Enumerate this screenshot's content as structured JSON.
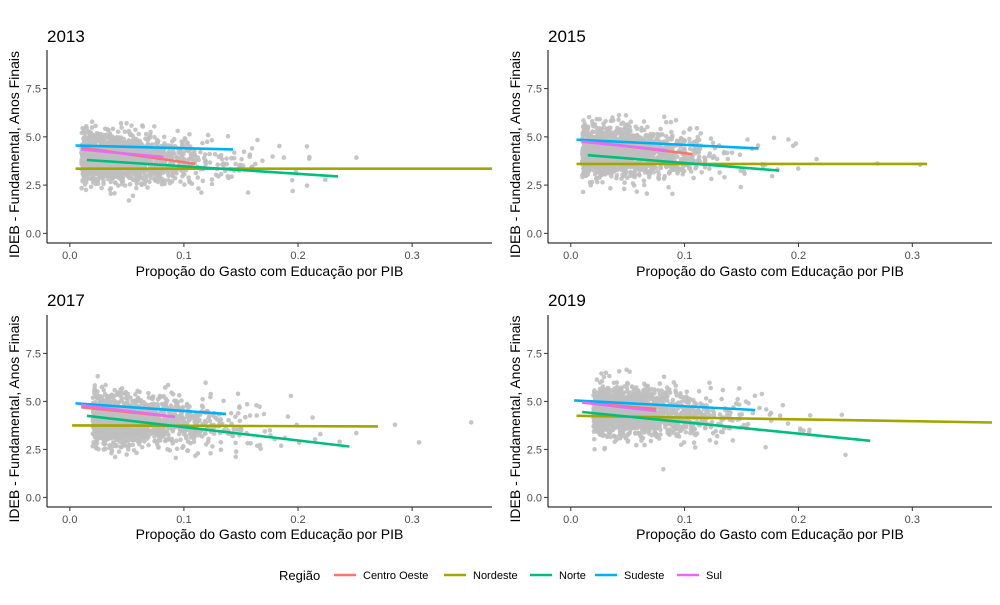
{
  "chart_data": [
    {
      "type": "scatter",
      "title": "2013",
      "xlabel": "Propoção do Gasto com Educação por PIB",
      "ylabel": "IDEB - Fundamental, Anos Finais",
      "xlim": [
        -0.02,
        0.37
      ],
      "ylim": [
        -0.5,
        9.5
      ],
      "xticks": [
        0.0,
        0.1,
        0.2,
        0.3
      ],
      "xtick_labels": [
        "0.0",
        "0.1",
        "0.2",
        "0.3"
      ],
      "yticks": [
        0.0,
        2.5,
        5.0,
        7.5
      ],
      "ytick_labels": [
        "0.0",
        "2.5",
        "5.0",
        "7.5"
      ],
      "grid": false,
      "scatter_cloud": {
        "color": "#bfbfbf",
        "x_center": 0.05,
        "y_center": 3.9
      },
      "series": [
        {
          "name": "Centro Oeste",
          "color": "#F8766D",
          "x": [
            0.01,
            0.11
          ],
          "y": [
            4.45,
            3.6
          ]
        },
        {
          "name": "Nordeste",
          "color": "#A3A500",
          "x": [
            0.005,
            0.37
          ],
          "y": [
            3.35,
            3.35
          ]
        },
        {
          "name": "Norte",
          "color": "#00BF7D",
          "x": [
            0.015,
            0.235
          ],
          "y": [
            3.8,
            2.95
          ]
        },
        {
          "name": "Sudeste",
          "color": "#00B0F6",
          "x": [
            0.005,
            0.143
          ],
          "y": [
            4.55,
            4.35
          ]
        },
        {
          "name": "Sul",
          "color": "#E76BF3",
          "x": [
            0.01,
            0.082
          ],
          "y": [
            4.35,
            3.95
          ]
        }
      ]
    },
    {
      "type": "scatter",
      "title": "2015",
      "xlabel": "Propoção do Gasto com Educação por PIB",
      "ylabel": "IDEB - Fundamental, Anos Finais",
      "xlim": [
        -0.02,
        0.37
      ],
      "ylim": [
        -0.5,
        9.5
      ],
      "xticks": [
        0.0,
        0.1,
        0.2,
        0.3
      ],
      "xtick_labels": [
        "0.0",
        "0.1",
        "0.2",
        "0.3"
      ],
      "yticks": [
        0.0,
        2.5,
        5.0,
        7.5
      ],
      "ytick_labels": [
        "0.0",
        "2.5",
        "5.0",
        "7.5"
      ],
      "grid": false,
      "scatter_cloud": {
        "color": "#bfbfbf",
        "x_center": 0.05,
        "y_center": 4.2
      },
      "series": [
        {
          "name": "Centro Oeste",
          "color": "#F8766D",
          "x": [
            0.01,
            0.107
          ],
          "y": [
            4.8,
            4.1
          ]
        },
        {
          "name": "Nordeste",
          "color": "#A3A500",
          "x": [
            0.005,
            0.313
          ],
          "y": [
            3.6,
            3.6
          ]
        },
        {
          "name": "Norte",
          "color": "#00BF7D",
          "x": [
            0.015,
            0.183
          ],
          "y": [
            4.05,
            3.25
          ]
        },
        {
          "name": "Sudeste",
          "color": "#00B0F6",
          "x": [
            0.005,
            0.165
          ],
          "y": [
            4.85,
            4.4
          ]
        },
        {
          "name": "Sul",
          "color": "#E76BF3",
          "x": [
            0.01,
            0.085
          ],
          "y": [
            4.75,
            4.3
          ]
        }
      ]
    },
    {
      "type": "scatter",
      "title": "2017",
      "xlabel": "Propoção do Gasto com Educação por PIB",
      "ylabel": "IDEB - Fundamental, Anos Finais",
      "xlim": [
        -0.02,
        0.37
      ],
      "ylim": [
        -0.5,
        9.5
      ],
      "xticks": [
        0.0,
        0.1,
        0.2,
        0.3
      ],
      "xtick_labels": [
        "0.0",
        "0.1",
        "0.2",
        "0.3"
      ],
      "yticks": [
        0.0,
        2.5,
        5.0,
        7.5
      ],
      "ytick_labels": [
        "0.0",
        "2.5",
        "5.0",
        "7.5"
      ],
      "grid": false,
      "scatter_cloud": {
        "color": "#bfbfbf",
        "x_center": 0.06,
        "y_center": 4.0
      },
      "series": [
        {
          "name": "Centro Oeste",
          "color": "#F8766D",
          "x": [
            0.01,
            0.092
          ],
          "y": [
            4.7,
            4.2
          ]
        },
        {
          "name": "Nordeste",
          "color": "#A3A500",
          "x": [
            0.002,
            0.27
          ],
          "y": [
            3.75,
            3.7
          ]
        },
        {
          "name": "Norte",
          "color": "#00BF7D",
          "x": [
            0.015,
            0.245
          ],
          "y": [
            4.25,
            2.65
          ]
        },
        {
          "name": "Sudeste",
          "color": "#00B0F6",
          "x": [
            0.005,
            0.137
          ],
          "y": [
            4.9,
            4.35
          ]
        },
        {
          "name": "Sul",
          "color": "#E76BF3",
          "x": [
            0.01,
            0.092
          ],
          "y": [
            4.8,
            4.2
          ]
        }
      ]
    },
    {
      "type": "scatter",
      "title": "2019",
      "xlabel": "Propoção do Gasto com Educação por PIB",
      "ylabel": "IDEB - Fundamental, Anos Finais",
      "xlim": [
        -0.02,
        0.37
      ],
      "ylim": [
        -0.5,
        9.5
      ],
      "xticks": [
        0.0,
        0.1,
        0.2,
        0.3
      ],
      "xtick_labels": [
        "0.0",
        "0.1",
        "0.2",
        "0.3"
      ],
      "yticks": [
        0.0,
        2.5,
        5.0,
        7.5
      ],
      "ytick_labels": [
        "0.0",
        "2.5",
        "5.0",
        "7.5"
      ],
      "grid": false,
      "scatter_cloud": {
        "color": "#bfbfbf",
        "x_center": 0.06,
        "y_center": 4.4
      },
      "series": [
        {
          "name": "Centro Oeste",
          "color": "#F8766D",
          "x": [
            0.01,
            0.075
          ],
          "y": [
            4.95,
            4.6
          ]
        },
        {
          "name": "Nordeste",
          "color": "#A3A500",
          "x": [
            0.005,
            0.37
          ],
          "y": [
            4.25,
            3.9
          ]
        },
        {
          "name": "Norte",
          "color": "#00BF7D",
          "x": [
            0.01,
            0.263
          ],
          "y": [
            4.45,
            2.95
          ]
        },
        {
          "name": "Sudeste",
          "color": "#00B0F6",
          "x": [
            0.003,
            0.162
          ],
          "y": [
            5.05,
            4.55
          ]
        },
        {
          "name": "Sul",
          "color": "#E76BF3",
          "x": [
            0.01,
            0.075
          ],
          "y": [
            4.95,
            4.5
          ]
        }
      ]
    }
  ],
  "legend": {
    "title": "Região",
    "placement": "bottom",
    "items": [
      {
        "label": "Centro Oeste",
        "color": "#F8766D"
      },
      {
        "label": "Nordeste",
        "color": "#A3A500"
      },
      {
        "label": "Norte",
        "color": "#00BF7D"
      },
      {
        "label": "Sudeste",
        "color": "#00B0F6"
      },
      {
        "label": "Sul",
        "color": "#E76BF3"
      }
    ]
  }
}
